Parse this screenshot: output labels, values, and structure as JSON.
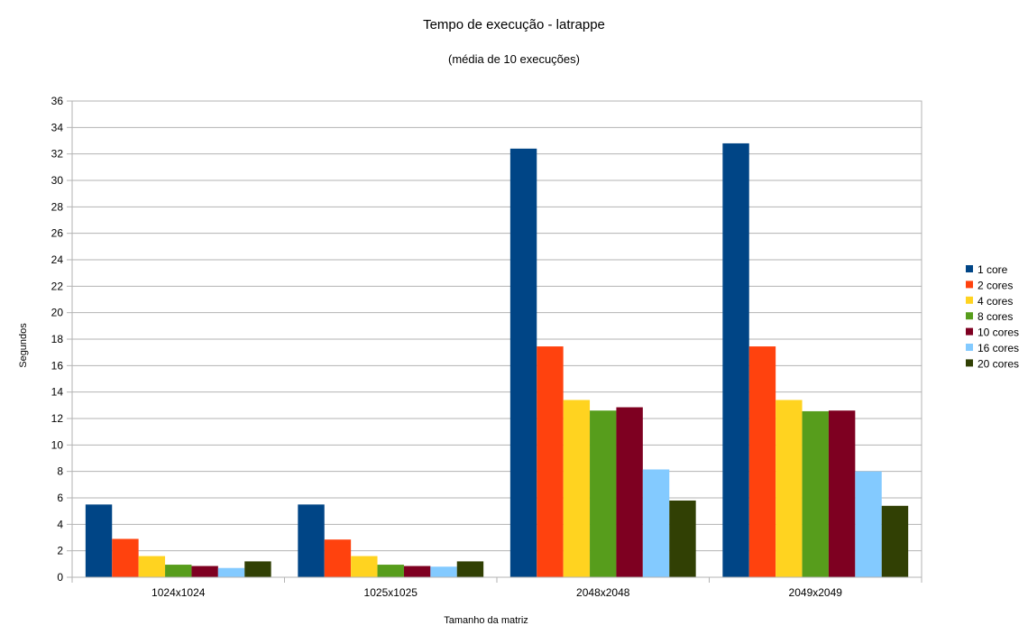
{
  "chart_data": {
    "type": "bar",
    "title": "Tempo de execução - latrappe",
    "subtitle": "(média de 10 execuções)",
    "xlabel": "Tamanho da matriz",
    "ylabel": "Segundos",
    "categories": [
      "1024x1024",
      "1025x1025",
      "2048x2048",
      "2049x2049"
    ],
    "ylim": [
      0,
      36
    ],
    "yticks": [
      0,
      2,
      4,
      6,
      8,
      10,
      12,
      14,
      16,
      18,
      20,
      22,
      24,
      26,
      28,
      30,
      32,
      34,
      36
    ],
    "grid": true,
    "legend": "right",
    "series": [
      {
        "name": "1 core",
        "color": "#004586",
        "values": [
          5.5,
          5.5,
          32.4,
          32.8
        ]
      },
      {
        "name": "2 cores",
        "color": "#ff420e",
        "values": [
          2.9,
          2.85,
          17.45,
          17.45
        ]
      },
      {
        "name": "4 cores",
        "color": "#ffd320",
        "values": [
          1.6,
          1.6,
          13.4,
          13.4
        ]
      },
      {
        "name": "8 cores",
        "color": "#579d1c",
        "values": [
          0.95,
          0.95,
          12.6,
          12.55
        ]
      },
      {
        "name": "10 cores",
        "color": "#7e0021",
        "values": [
          0.85,
          0.85,
          12.85,
          12.6
        ]
      },
      {
        "name": "16 cores",
        "color": "#83caff",
        "values": [
          0.7,
          0.8,
          8.15,
          8.0
        ]
      },
      {
        "name": "20 cores",
        "color": "#314004",
        "values": [
          1.2,
          1.2,
          5.8,
          5.4
        ]
      }
    ]
  }
}
